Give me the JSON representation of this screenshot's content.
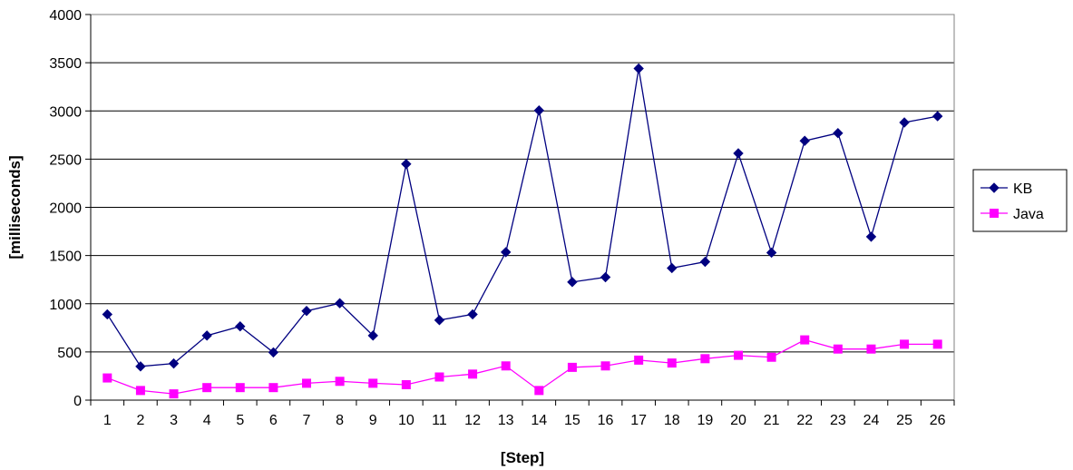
{
  "chart_data": {
    "type": "line",
    "title": "",
    "xlabel": "[Step]",
    "ylabel": "[milliseconds]",
    "x": [
      1,
      2,
      3,
      4,
      5,
      6,
      7,
      8,
      9,
      10,
      11,
      12,
      13,
      14,
      15,
      16,
      17,
      18,
      19,
      20,
      21,
      22,
      23,
      24,
      25,
      26
    ],
    "ylim": [
      0,
      4000
    ],
    "yticks": [
      0,
      500,
      1000,
      1500,
      2000,
      2500,
      3000,
      3500,
      4000
    ],
    "grid": true,
    "legend_position": "right",
    "series": [
      {
        "name": "KB",
        "marker": "diamond",
        "color": "#000080",
        "values": [
          890,
          350,
          380,
          670,
          765,
          495,
          925,
          1005,
          670,
          2450,
          830,
          890,
          1535,
          3005,
          1225,
          1275,
          3440,
          1370,
          1435,
          2560,
          1530,
          2690,
          2770,
          1695,
          2880,
          2945
        ]
      },
      {
        "name": "Java",
        "marker": "square",
        "color": "#ff00ff",
        "values": [
          230,
          100,
          65,
          130,
          130,
          130,
          175,
          195,
          175,
          160,
          240,
          270,
          355,
          100,
          340,
          355,
          415,
          385,
          430,
          465,
          445,
          625,
          530,
          530,
          580,
          580
        ]
      }
    ]
  }
}
